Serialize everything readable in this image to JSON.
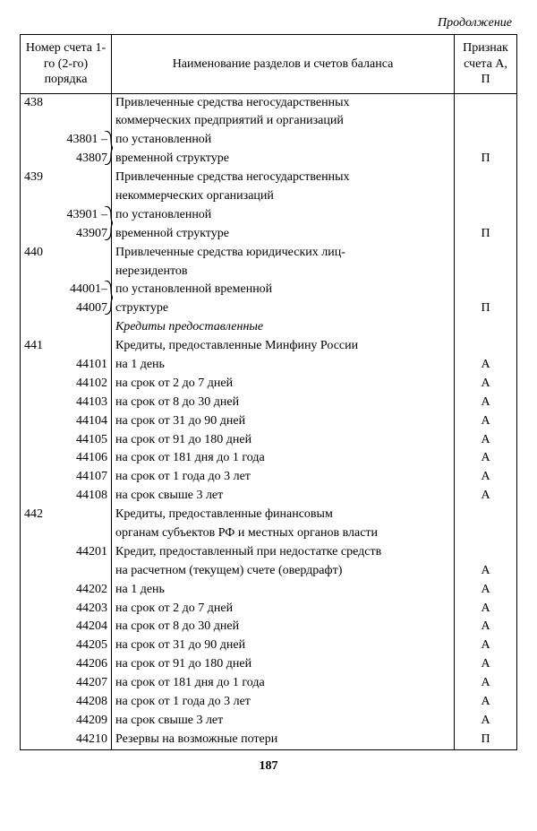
{
  "continuation": "Продолжение",
  "header": {
    "col_number": "Номер счета 1-го (2-го) порядка",
    "col_name": "Наименование разделов и счетов баланса",
    "col_sign": "Признак счета А, П"
  },
  "rows": [
    {
      "l1": "438",
      "l2": "",
      "name": "Привлеченные средства негосударственных",
      "sign": ""
    },
    {
      "l1": "",
      "l2": "",
      "name": "коммерческих предприятий и организаций",
      "sign": ""
    },
    {
      "l1": "",
      "l2": "43801 –",
      "name": "по установленной",
      "sign": "",
      "brace": true
    },
    {
      "l1": "",
      "l2": "43807",
      "name": "временной структуре",
      "sign": "П"
    },
    {
      "l1": "439",
      "l2": "",
      "name": "Привлеченные средства негосударственных",
      "sign": ""
    },
    {
      "l1": "",
      "l2": "",
      "name": "некоммерческих организаций",
      "sign": ""
    },
    {
      "l1": "",
      "l2": "43901 –",
      "name": "по установленной",
      "sign": "",
      "brace": true
    },
    {
      "l1": "",
      "l2": "43907",
      "name": "временной структуре",
      "sign": "П"
    },
    {
      "l1": "440",
      "l2": "",
      "name": "Привлеченные средства юридических лиц-",
      "sign": ""
    },
    {
      "l1": "",
      "l2": "",
      "name": "нерезидентов",
      "sign": ""
    },
    {
      "l1": "",
      "l2": "44001–",
      "name": "по установленной временной",
      "sign": "",
      "brace": true
    },
    {
      "l1": "",
      "l2": "44007",
      "name": "структуре",
      "sign": "П"
    },
    {
      "l1": "",
      "l2": "",
      "name": "Кредиты предоставленные",
      "sign": "",
      "section": true
    },
    {
      "l1": "441",
      "l2": "",
      "name": "Кредиты, предоставленные Минфину России",
      "sign": ""
    },
    {
      "l1": "",
      "l2": "44101",
      "name": "на 1 день",
      "sign": "А"
    },
    {
      "l1": "",
      "l2": "44102",
      "name": "на срок от 2 до 7 дней",
      "sign": "А"
    },
    {
      "l1": "",
      "l2": "44103",
      "name": "на срок от 8 до 30 дней",
      "sign": "А"
    },
    {
      "l1": "",
      "l2": "44104",
      "name": "на срок от 31 до 90 дней",
      "sign": "А"
    },
    {
      "l1": "",
      "l2": "44105",
      "name": "на срок от 91 до 180 дней",
      "sign": "А"
    },
    {
      "l1": "",
      "l2": "44106",
      "name": "на срок от 181 дня до 1 года",
      "sign": "А"
    },
    {
      "l1": "",
      "l2": "44107",
      "name": "на срок от 1 года до 3 лет",
      "sign": "А"
    },
    {
      "l1": "",
      "l2": "44108",
      "name": "на срок свыше 3 лет",
      "sign": "А"
    },
    {
      "l1": "442",
      "l2": "",
      "name": "Кредиты, предоставленные финансовым",
      "sign": ""
    },
    {
      "l1": "",
      "l2": "",
      "name": "органам субъектов РФ и местных органов власти",
      "sign": ""
    },
    {
      "l1": "",
      "l2": "44201",
      "name": "Кредит, предоставленный при недостатке средств",
      "sign": ""
    },
    {
      "l1": "",
      "l2": "",
      "name": "на расчетном (текущем) счете (овердрафт)",
      "sign": "А"
    },
    {
      "l1": "",
      "l2": "44202",
      "name": "на 1 день",
      "sign": "А"
    },
    {
      "l1": "",
      "l2": "44203",
      "name": "на срок от 2 до 7 дней",
      "sign": "А"
    },
    {
      "l1": "",
      "l2": "44204",
      "name": "на срок от 8 до 30 дней",
      "sign": "А"
    },
    {
      "l1": "",
      "l2": "44205",
      "name": "на срок от 31 до 90 дней",
      "sign": "А"
    },
    {
      "l1": "",
      "l2": "44206",
      "name": "на срок от 91 до 180 дней",
      "sign": "А"
    },
    {
      "l1": "",
      "l2": "44207",
      "name": "на срок от 181 дня до 1 года",
      "sign": "А"
    },
    {
      "l1": "",
      "l2": "44208",
      "name": "на срок от 1 года до 3 лет",
      "sign": "А"
    },
    {
      "l1": "",
      "l2": "44209",
      "name": "на срок свыше 3 лет",
      "sign": "А"
    },
    {
      "l1": "",
      "l2": "44210",
      "name": "Резервы на возможные потери",
      "sign": "П",
      "last": true
    }
  ],
  "page_number": "187"
}
